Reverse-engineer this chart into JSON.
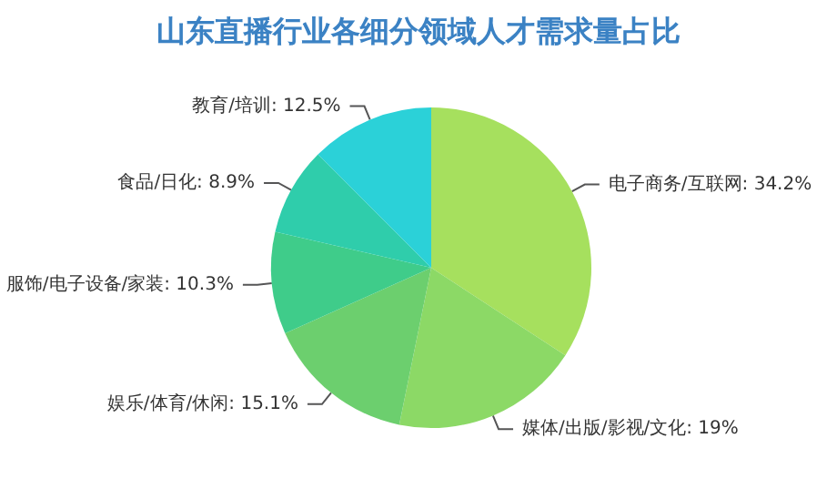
{
  "chart_data": {
    "type": "pie",
    "title": "山东直播行业各细分领域人才需求量占比",
    "categories": [
      "电子商务/互联网",
      "媒体/出版/影视/文化",
      "娱乐/体育/休闲",
      "服饰/电子设备/家装",
      "食品/日化",
      "教育/培训"
    ],
    "values": [
      34.2,
      19,
      15.1,
      10.3,
      8.9,
      12.5
    ],
    "value_labels": [
      ": 34.2%",
      ": 19%",
      ": 15.1%",
      ": 10.3%",
      ": 8.9%",
      ": 12.5%"
    ],
    "colors": [
      "#a6e05e",
      "#8cd966",
      "#6ccf6e",
      "#3fcc8a",
      "#2fcdab",
      "#2bd1d8"
    ],
    "legend": false
  }
}
